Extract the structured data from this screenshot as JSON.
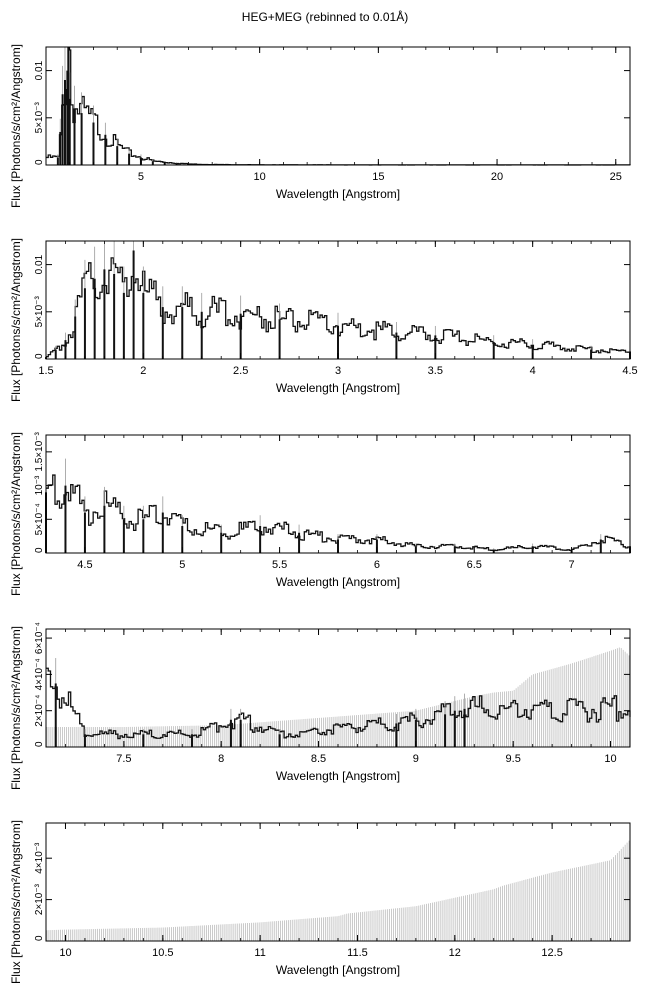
{
  "title": "HEG+MEG (rebinned to 0.01Å)",
  "chart_data": [
    {
      "type": "line",
      "xlabel": "Wavelength [Angstrom]",
      "ylabel": "Flux [Photons/s/cm²/Angstrom]",
      "xlim": [
        1.0,
        25.6
      ],
      "ylim": [
        0,
        0.0125
      ],
      "xticks": [
        5,
        10,
        15,
        20,
        25
      ],
      "xtick_labels": [
        "5",
        "10",
        "15",
        "20",
        "25"
      ],
      "yticks": [
        0,
        0.005,
        0.01
      ],
      "ytick_labels": [
        "0",
        "5×10⁻³",
        "0.01"
      ],
      "series": [
        {
          "x": [
            1.5,
            1.6,
            1.7,
            1.8,
            1.9,
            1.95,
            2.0,
            2.2,
            2.5,
            3.0,
            3.5,
            4.0,
            4.5,
            5.0,
            5.5,
            6.0,
            6.5,
            7.0,
            8.0,
            9.0,
            10.0,
            15.0,
            20.0,
            25.6
          ],
          "y": [
            0.0008,
            0.0035,
            0.0075,
            0.009,
            0.01,
            0.0125,
            0.007,
            0.006,
            0.0055,
            0.0045,
            0.0032,
            0.002,
            0.0012,
            0.0008,
            0.0004,
            0.0003,
            0.0002,
            0.0001,
            5e-05,
            3e-05,
            2e-05,
            1e-05,
            1e-05,
            1e-05
          ]
        }
      ]
    },
    {
      "type": "line",
      "xlabel": "Wavelength [Angstrom]",
      "ylabel": "Flux [Photons/s/cm²/Angstrom]",
      "xlim": [
        1.5,
        4.5
      ],
      "ylim": [
        0,
        0.0125
      ],
      "xticks": [
        1.5,
        2,
        2.5,
        3,
        3.5,
        4,
        4.5
      ],
      "xtick_labels": [
        "1.5",
        "2",
        "2.5",
        "3",
        "3.5",
        "4",
        "4.5"
      ],
      "yticks": [
        0,
        0.005,
        0.01
      ],
      "ytick_labels": [
        "0",
        "5×10⁻³",
        "0.01"
      ],
      "series": [
        {
          "x": [
            1.5,
            1.55,
            1.6,
            1.65,
            1.7,
            1.75,
            1.8,
            1.85,
            1.9,
            1.95,
            2.0,
            2.1,
            2.2,
            2.3,
            2.5,
            2.7,
            3.0,
            3.3,
            3.5,
            3.8,
            4.0,
            4.3,
            4.5
          ],
          "y": [
            0.0002,
            0.001,
            0.002,
            0.0045,
            0.0075,
            0.0085,
            0.0095,
            0.009,
            0.007,
            0.0115,
            0.007,
            0.0055,
            0.0055,
            0.005,
            0.0048,
            0.0042,
            0.0035,
            0.0028,
            0.0025,
            0.0018,
            0.0015,
            0.001,
            0.0008
          ]
        }
      ]
    },
    {
      "type": "line",
      "xlabel": "Wavelength [Angstrom]",
      "ylabel": "Flux [Photons/s/cm²/Angstrom]",
      "xlim": [
        4.3,
        7.3
      ],
      "ylim": [
        0,
        0.00175
      ],
      "xticks": [
        4.5,
        5,
        5.5,
        6,
        6.5,
        7
      ],
      "xtick_labels": [
        "4.5",
        "5",
        "5.5",
        "6",
        "6.5",
        "7"
      ],
      "yticks": [
        0,
        0.0005,
        0.001,
        0.0015
      ],
      "ytick_labels": [
        "0",
        "5×10⁻⁴",
        "10⁻³",
        "1.5×10⁻³"
      ],
      "series": [
        {
          "x": [
            4.3,
            4.4,
            4.5,
            4.6,
            4.7,
            4.8,
            4.9,
            5.0,
            5.2,
            5.4,
            5.6,
            5.8,
            6.0,
            6.2,
            6.4,
            6.6,
            6.8,
            7.0,
            7.15,
            7.3
          ],
          "y": [
            0.0009,
            0.001,
            0.0006,
            0.0007,
            0.0005,
            0.0005,
            0.0006,
            0.0004,
            0.0003,
            0.0004,
            0.0003,
            0.0002,
            0.0002,
            0.0001,
            0.0001,
            5e-05,
            0.0001,
            5e-05,
            0.0002,
            0.0001
          ]
        }
      ]
    },
    {
      "type": "line",
      "xlabel": "Wavelength [Angstrom]",
      "ylabel": "Flux [Photons/s/cm²/Angstrom]",
      "xlim": [
        7.1,
        10.1
      ],
      "ylim": [
        0,
        0.00065
      ],
      "xticks": [
        7.5,
        8,
        8.5,
        9,
        9.5,
        10
      ],
      "xtick_labels": [
        "7.5",
        "8",
        "8.5",
        "9",
        "9.5",
        "10"
      ],
      "yticks": [
        0,
        0.0002,
        0.0004,
        0.0006
      ],
      "ytick_labels": [
        "0",
        "2×10⁻⁴",
        "4×10⁻⁴",
        "6×10⁻⁴"
      ],
      "series": [
        {
          "x": [
            7.15,
            7.3,
            7.6,
            7.85,
            8.05,
            8.1,
            8.3,
            8.9,
            9.0,
            9.15,
            9.2,
            9.25
          ],
          "y": [
            0.00035,
            7e-05,
            7e-05,
            7e-05,
            0.00015,
            0.00015,
            7e-05,
            0.00013,
            0.00015,
            0.00018,
            0.0002,
            0.00021
          ]
        }
      ],
      "error_upper": {
        "x": [
          7.1,
          7.5,
          8.0,
          8.5,
          9.0,
          9.3,
          9.4,
          9.5,
          9.6,
          9.8,
          10.0,
          10.05,
          10.1
        ],
        "y": [
          0.00011,
          0.00011,
          0.00012,
          0.00016,
          0.0002,
          0.00028,
          0.0003,
          0.00031,
          0.0004,
          0.00046,
          0.00053,
          0.00055,
          0.0005
        ]
      }
    },
    {
      "type": "line",
      "xlabel": "Wavelength [Angstrom]",
      "ylabel": "Flux [Photons/s/cm²/Angstrom]",
      "xlim": [
        9.9,
        12.9
      ],
      "ylim": [
        0,
        0.0057
      ],
      "xticks": [
        10,
        10.5,
        11,
        11.5,
        12,
        12.5
      ],
      "xtick_labels": [
        "10",
        "10.5",
        "11",
        "11.5",
        "12",
        "12.5"
      ],
      "yticks": [
        0,
        0.002,
        0.004
      ],
      "ytick_labels": [
        "0",
        "2×10⁻³",
        "4×10⁻³"
      ],
      "error_upper": {
        "x": [
          9.9,
          10.0,
          10.5,
          11.0,
          11.4,
          11.45,
          11.5,
          11.8,
          12.2,
          12.25,
          12.5,
          12.8,
          12.9
        ],
        "y": [
          0.00052,
          0.00055,
          0.00065,
          0.0009,
          0.0012,
          0.00133,
          0.00138,
          0.00168,
          0.0025,
          0.00268,
          0.00331,
          0.0039,
          0.0049
        ]
      }
    }
  ]
}
